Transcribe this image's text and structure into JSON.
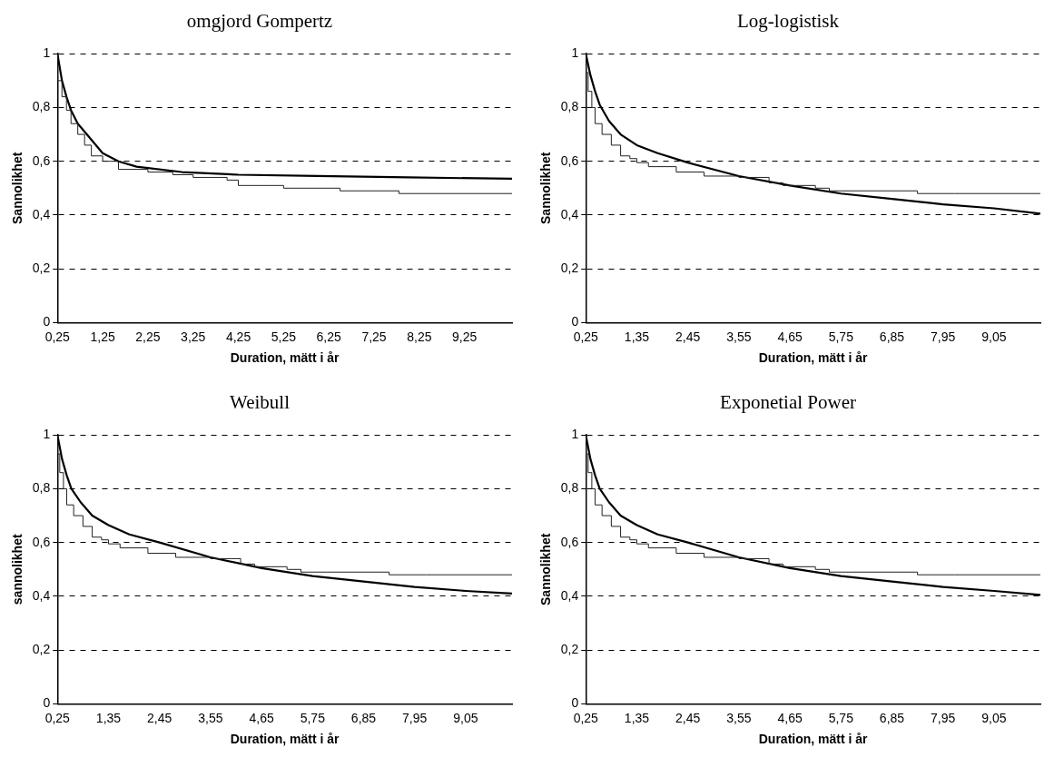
{
  "chart_data": [
    {
      "type": "line",
      "title": "omgjord Gompertz",
      "xlabel": "Duration, mätt i år",
      "ylabel": "Sannolikhet",
      "xlim": [
        0.25,
        10.3
      ],
      "xticks": [
        {
          "value": 0.25,
          "label": "0,25"
        },
        {
          "value": 1.25,
          "label": "1,25"
        },
        {
          "value": 2.25,
          "label": "2,25"
        },
        {
          "value": 3.25,
          "label": "3,25"
        },
        {
          "value": 4.25,
          "label": "4,25"
        },
        {
          "value": 5.25,
          "label": "5,25"
        },
        {
          "value": 6.25,
          "label": "6,25"
        },
        {
          "value": 7.25,
          "label": "7,25"
        },
        {
          "value": 8.25,
          "label": "8,25"
        },
        {
          "value": 9.25,
          "label": "9,25"
        }
      ],
      "ylim": [
        0,
        1
      ],
      "yticks": [
        {
          "value": 0,
          "label": "0"
        },
        {
          "value": 0.2,
          "label": "0,2"
        },
        {
          "value": 0.4,
          "label": "0,4"
        },
        {
          "value": 0.6,
          "label": "0,6"
        },
        {
          "value": 0.8,
          "label": "0,8"
        },
        {
          "value": 1,
          "label": "1"
        }
      ],
      "grid": "y",
      "marker": "none",
      "series": [
        {
          "type": "step",
          "color": "#222222",
          "x": [
            0.25,
            0.35,
            0.45,
            0.55,
            0.7,
            0.85,
            1.0,
            1.25,
            1.6,
            2.25,
            2.8,
            3.25,
            4.0,
            4.25,
            5.25,
            6.5,
            7.8,
            10.3
          ],
          "values": [
            1,
            0.9,
            0.84,
            0.79,
            0.74,
            0.7,
            0.66,
            0.62,
            0.6,
            0.57,
            0.56,
            0.55,
            0.54,
            0.53,
            0.51,
            0.5,
            0.49,
            0.48
          ]
        },
        {
          "type": "line",
          "color": "#000000",
          "x": [
            0.25,
            0.35,
            0.45,
            0.55,
            0.7,
            0.9,
            1.25,
            1.6,
            2.0,
            3.0,
            4.25,
            6.0,
            8.0,
            10.3
          ],
          "values": [
            1,
            0.9,
            0.84,
            0.79,
            0.74,
            0.7,
            0.63,
            0.6,
            0.58,
            0.56,
            0.55,
            0.545,
            0.54,
            0.535
          ]
        }
      ]
    },
    {
      "type": "line",
      "title": "Log-logistisk",
      "xlabel": "Duration, mätt i år",
      "ylabel": "Sannolikhet",
      "xlim": [
        0.25,
        10.05
      ],
      "xticks": [
        {
          "value": 0.25,
          "label": "0,25"
        },
        {
          "value": 1.35,
          "label": "1,35"
        },
        {
          "value": 2.45,
          "label": "2,45"
        },
        {
          "value": 3.55,
          "label": "3,55"
        },
        {
          "value": 4.65,
          "label": "4,65"
        },
        {
          "value": 5.75,
          "label": "5,75"
        },
        {
          "value": 6.85,
          "label": "6,85"
        },
        {
          "value": 7.95,
          "label": "7,95"
        },
        {
          "value": 9.05,
          "label": "9,05"
        }
      ],
      "ylim": [
        0,
        1
      ],
      "yticks": [
        {
          "value": 0,
          "label": "0"
        },
        {
          "value": 0.2,
          "label": "0,2"
        },
        {
          "value": 0.4,
          "label": "0,4"
        },
        {
          "value": 0.6,
          "label": "0,6"
        },
        {
          "value": 0.8,
          "label": "0,8"
        },
        {
          "value": 1,
          "label": "1"
        }
      ],
      "grid": "y",
      "marker": "none",
      "series": [
        {
          "type": "step",
          "color": "#222222",
          "x": [
            0.25,
            0.3,
            0.38,
            0.45,
            0.6,
            0.8,
            1.0,
            1.2,
            1.35,
            1.6,
            2.2,
            2.8,
            3.55,
            4.2,
            4.5,
            5.2,
            5.5,
            7.4,
            8.2,
            10.05
          ],
          "values": [
            1,
            0.93,
            0.86,
            0.8,
            0.74,
            0.7,
            0.66,
            0.62,
            0.61,
            0.595,
            0.58,
            0.56,
            0.545,
            0.54,
            0.52,
            0.51,
            0.5,
            0.49,
            0.48,
            0.48
          ]
        },
        {
          "type": "line",
          "color": "#000000",
          "x": [
            0.25,
            0.35,
            0.45,
            0.55,
            0.75,
            1.0,
            1.35,
            1.8,
            2.45,
            3.55,
            4.65,
            5.75,
            6.85,
            7.95,
            9.05,
            10.05
          ],
          "values": [
            1,
            0.92,
            0.86,
            0.81,
            0.75,
            0.7,
            0.66,
            0.63,
            0.595,
            0.545,
            0.51,
            0.48,
            0.46,
            0.44,
            0.425,
            0.405
          ]
        }
      ]
    },
    {
      "type": "line",
      "title": "Weibull",
      "xlabel": "Duration, mätt i år",
      "ylabel": "sannolikhet",
      "xlim": [
        0.25,
        10.05
      ],
      "xticks": [
        {
          "value": 0.25,
          "label": "0,25"
        },
        {
          "value": 1.35,
          "label": "1,35"
        },
        {
          "value": 2.45,
          "label": "2,45"
        },
        {
          "value": 3.55,
          "label": "3,55"
        },
        {
          "value": 4.65,
          "label": "4,65"
        },
        {
          "value": 5.75,
          "label": "5,75"
        },
        {
          "value": 6.85,
          "label": "6,85"
        },
        {
          "value": 7.95,
          "label": "7,95"
        },
        {
          "value": 9.05,
          "label": "9,05"
        }
      ],
      "ylim": [
        0,
        1
      ],
      "yticks": [
        {
          "value": 0,
          "label": "0"
        },
        {
          "value": 0.2,
          "label": "0,2"
        },
        {
          "value": 0.4,
          "label": "0,4"
        },
        {
          "value": 0.6,
          "label": "0,6"
        },
        {
          "value": 0.8,
          "label": "0,8"
        },
        {
          "value": 1,
          "label": "1"
        }
      ],
      "grid": "y",
      "marker": "none",
      "series": [
        {
          "type": "step",
          "color": "#222222",
          "x": [
            0.25,
            0.3,
            0.38,
            0.45,
            0.6,
            0.8,
            1.0,
            1.2,
            1.35,
            1.6,
            2.2,
            2.8,
            3.55,
            4.2,
            4.5,
            5.2,
            5.5,
            7.4,
            8.2,
            10.05
          ],
          "values": [
            1,
            0.93,
            0.86,
            0.8,
            0.74,
            0.7,
            0.66,
            0.62,
            0.61,
            0.595,
            0.58,
            0.56,
            0.545,
            0.54,
            0.52,
            0.51,
            0.5,
            0.49,
            0.48,
            0.48
          ]
        },
        {
          "type": "line",
          "color": "#000000",
          "x": [
            0.25,
            0.35,
            0.45,
            0.55,
            0.75,
            1.0,
            1.35,
            1.8,
            2.45,
            3.55,
            4.65,
            5.75,
            6.85,
            7.95,
            9.05,
            10.05
          ],
          "values": [
            1,
            0.91,
            0.85,
            0.8,
            0.75,
            0.7,
            0.665,
            0.63,
            0.6,
            0.545,
            0.505,
            0.475,
            0.455,
            0.435,
            0.42,
            0.41
          ]
        }
      ]
    },
    {
      "type": "line",
      "title": "Exponetial Power",
      "xlabel": "Duration, mätt i år",
      "ylabel": "Sannolikhet",
      "xlim": [
        0.25,
        10.05
      ],
      "xticks": [
        {
          "value": 0.25,
          "label": "0,25"
        },
        {
          "value": 1.35,
          "label": "1,35"
        },
        {
          "value": 2.45,
          "label": "2,45"
        },
        {
          "value": 3.55,
          "label": "3,55"
        },
        {
          "value": 4.65,
          "label": "4,65"
        },
        {
          "value": 5.75,
          "label": "5,75"
        },
        {
          "value": 6.85,
          "label": "6,85"
        },
        {
          "value": 7.95,
          "label": "7,95"
        },
        {
          "value": 9.05,
          "label": "9,05"
        }
      ],
      "ylim": [
        0,
        1
      ],
      "yticks": [
        {
          "value": 0,
          "label": "0"
        },
        {
          "value": 0.2,
          "label": "0,2"
        },
        {
          "value": 0.4,
          "label": "0,4"
        },
        {
          "value": 0.6,
          "label": "0,6"
        },
        {
          "value": 0.8,
          "label": "0,8"
        },
        {
          "value": 1,
          "label": "1"
        }
      ],
      "grid": "y",
      "marker": "none",
      "series": [
        {
          "type": "step",
          "color": "#222222",
          "x": [
            0.25,
            0.3,
            0.38,
            0.45,
            0.6,
            0.8,
            1.0,
            1.2,
            1.35,
            1.6,
            2.2,
            2.8,
            3.55,
            4.2,
            4.5,
            5.2,
            5.5,
            7.4,
            8.2,
            10.05
          ],
          "values": [
            1,
            0.93,
            0.86,
            0.8,
            0.74,
            0.7,
            0.66,
            0.62,
            0.61,
            0.595,
            0.58,
            0.56,
            0.545,
            0.54,
            0.52,
            0.51,
            0.5,
            0.49,
            0.48,
            0.48
          ]
        },
        {
          "type": "line",
          "color": "#000000",
          "x": [
            0.25,
            0.35,
            0.45,
            0.55,
            0.75,
            1.0,
            1.35,
            1.8,
            2.45,
            3.55,
            4.65,
            5.75,
            6.85,
            7.95,
            9.05,
            10.05
          ],
          "values": [
            1,
            0.91,
            0.85,
            0.8,
            0.75,
            0.7,
            0.665,
            0.63,
            0.6,
            0.545,
            0.505,
            0.475,
            0.455,
            0.435,
            0.42,
            0.405
          ]
        }
      ]
    }
  ]
}
